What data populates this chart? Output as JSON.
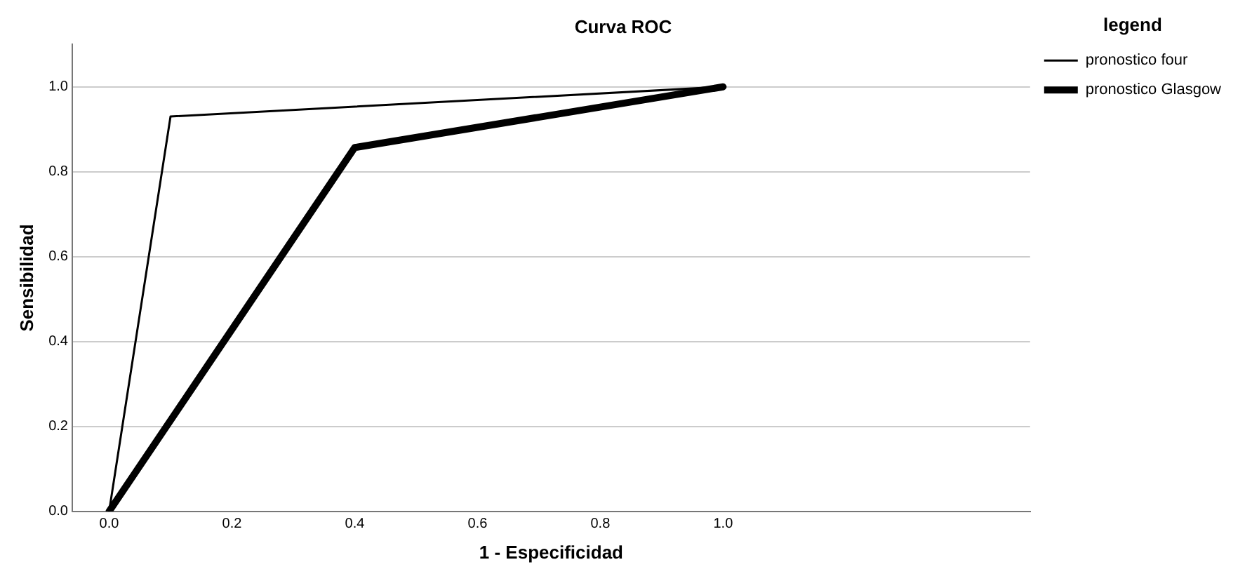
{
  "chart_data": {
    "type": "line",
    "title": "Curva ROC",
    "xlabel": "1 - Especificidad",
    "ylabel": "Sensibilidad",
    "legend_title": "legend",
    "legend": "right",
    "series": [
      {
        "name": "pronostico four",
        "color": "#000000",
        "x": [
          0,
          0.1,
          1
        ],
        "values": [
          0,
          0.93,
          1
        ]
      },
      {
        "name": "pronostico Glasgow",
        "color": "#000000",
        "x": [
          0,
          0.4,
          1
        ],
        "values": [
          0,
          0.857,
          1
        ]
      }
    ],
    "xlim": [
      -0.06,
      1.5
    ],
    "xticks": [
      {
        "value": 0,
        "label": "0.0"
      },
      0.2,
      0.4,
      0.6,
      0.8,
      {
        "value": 1,
        "label": "1.0"
      }
    ],
    "ylim": [
      0,
      1.1
    ],
    "yticks": [
      {
        "value": 0,
        "label": "0.0"
      },
      0.2,
      0.4,
      0.6,
      0.8,
      {
        "value": 1,
        "label": "1.0"
      }
    ],
    "grid": "y",
    "marker": "none",
    "line_style": "solid"
  }
}
